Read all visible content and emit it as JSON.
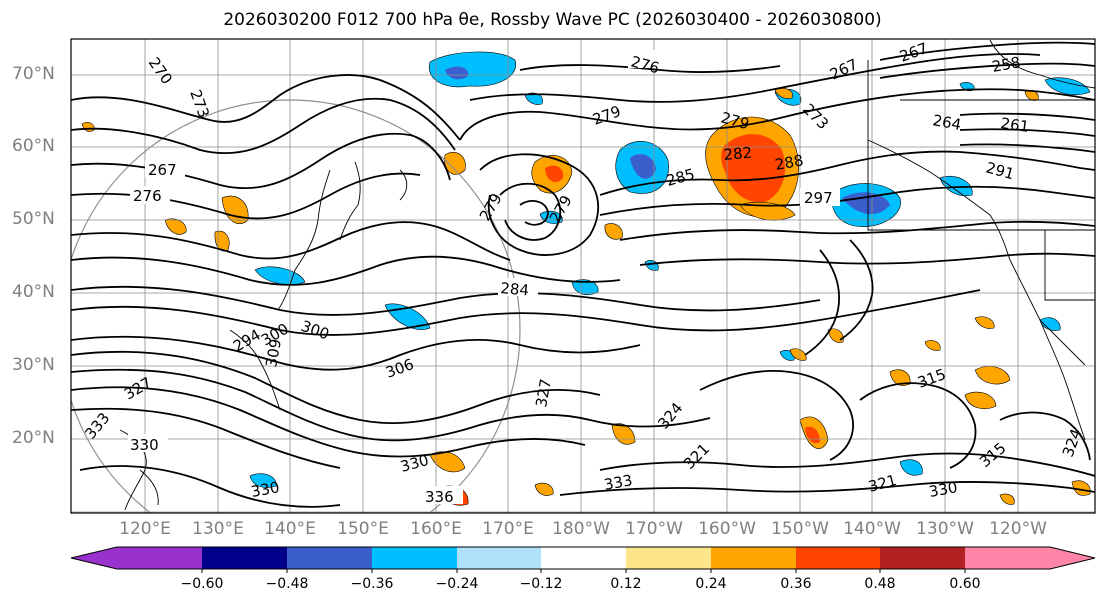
{
  "title": "2026030200 F012 700 hPa θe, Rossby Wave PC (2026030400 - 2026030800)",
  "lat_labels": [
    "70°N",
    "60°N",
    "50°N",
    "40°N",
    "30°N",
    "20°N"
  ],
  "lon_labels": [
    "120°E",
    "130°E",
    "140°E",
    "150°E",
    "160°E",
    "170°E",
    "180°W",
    "170°W",
    "160°W",
    "150°W",
    "140°W",
    "130°W",
    "120°W"
  ],
  "contour_labels": [
    "270",
    "273",
    "276",
    "267",
    "279",
    "279",
    "279",
    "273",
    "267",
    "258",
    "264",
    "261",
    "267",
    "276",
    "282",
    "285",
    "288",
    "291",
    "297",
    "279",
    "284",
    "300",
    "294",
    "300",
    "306",
    "309",
    "327",
    "330",
    "333",
    "336",
    "330",
    "333",
    "321",
    "324",
    "315",
    "324",
    "315",
    "330",
    "321",
    "327",
    "330"
  ],
  "colorbar": {
    "colors": [
      "#9932cc",
      "#00008b",
      "#3a5fcd",
      "#00bfff",
      "#afe1fa",
      "#ffffff",
      "#fde68a",
      "#ffa500",
      "#ff4500",
      "#b22222",
      "#ff85a8"
    ],
    "ticks": [
      "−0.60",
      "−0.48",
      "−0.36",
      "−0.24",
      "−0.12",
      "0.12",
      "0.24",
      "0.36",
      "0.48",
      "0.60"
    ]
  },
  "colors": {
    "contour": "#000000",
    "grid": "#8c8c8c",
    "axis_label": "#808080"
  }
}
